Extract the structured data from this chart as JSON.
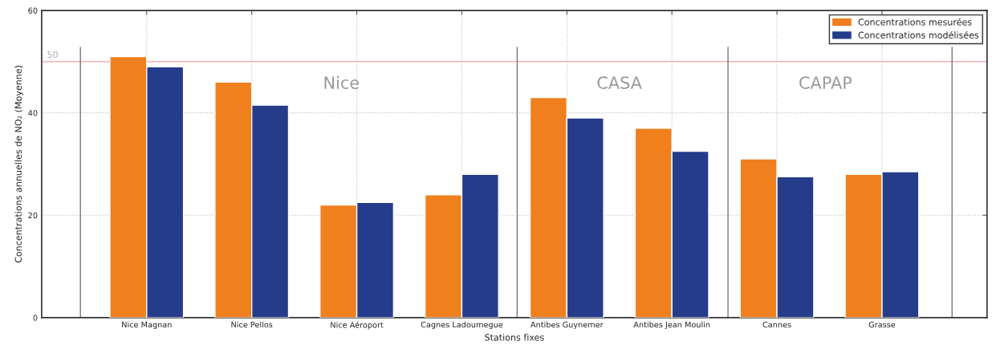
{
  "chart_data": {
    "type": "bar",
    "categories": [
      "Nice Magnan",
      "Nice Pellos",
      "Nice Aéroport",
      "Cagnes Ladoumegue",
      "Antibes Guynemer",
      "Antibes Jean Moulin",
      "Cannes",
      "Grasse"
    ],
    "series": [
      {
        "name": "Concentrations mesurées",
        "color": "#f07f1e",
        "values": [
          51,
          46,
          22,
          24,
          43,
          37,
          31,
          28
        ]
      },
      {
        "name": "Concentrations modélisées",
        "color": "#253c8a",
        "values": [
          49,
          41.5,
          22.5,
          28,
          39,
          32.5,
          27.5,
          28.5
        ]
      }
    ],
    "xlabel": "Stations fixes",
    "ylabel": "Concentrations annuelles de NO₂ (Moyenne)",
    "ylim": [
      0,
      60
    ],
    "yticks": [
      0,
      20,
      40,
      60
    ],
    "ref_lines": [
      {
        "axis": "y",
        "value": 50,
        "label": "50",
        "color": "#f4a0a8"
      }
    ],
    "annotations": [
      "Nice",
      "CASA",
      "CAPAP"
    ],
    "grid": true,
    "legend": "top right"
  }
}
